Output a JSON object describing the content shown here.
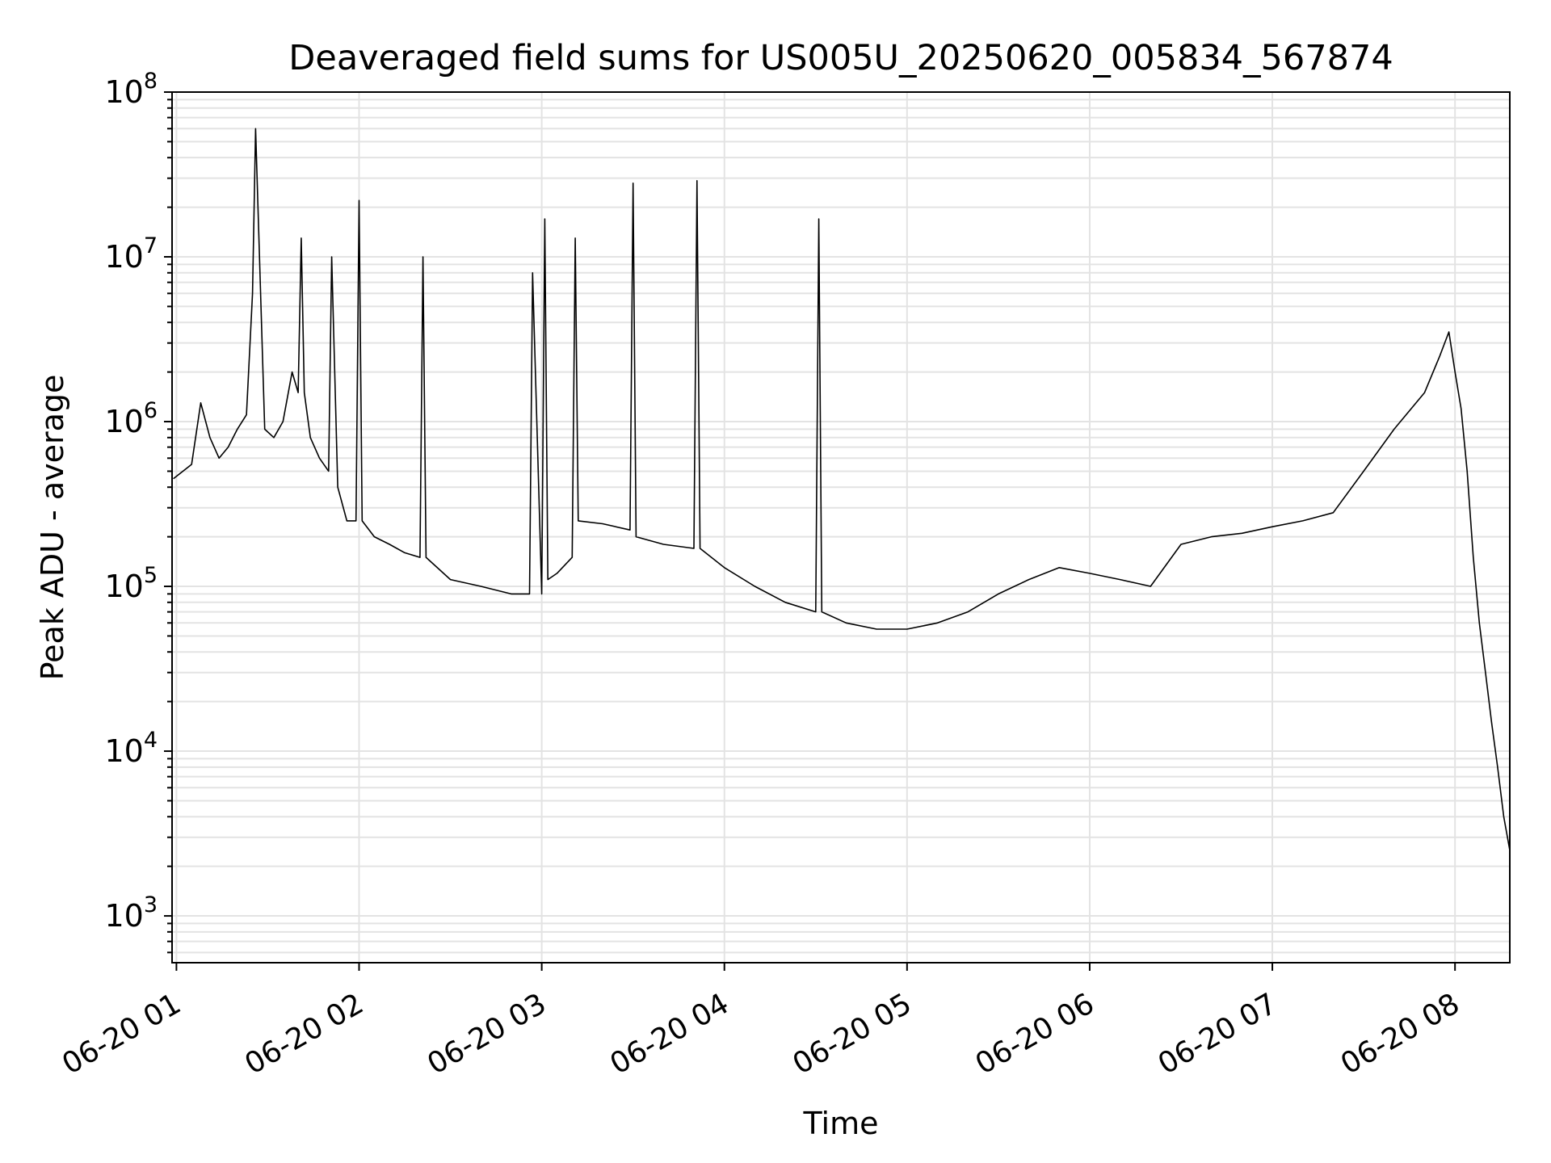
{
  "chart_data": {
    "type": "line",
    "title": "Deaveraged field sums for US005U_20250620_005834_567874",
    "xlabel": "Time",
    "ylabel": "Peak ADU - average",
    "yscale": "log",
    "grid": true,
    "ylim": [
      520,
      100000000
    ],
    "xlim": [
      "06-20 00:58:34",
      "06-20 08:18:00"
    ],
    "x_ticks": [
      "06-20 01",
      "06-20 02",
      "06-20 03",
      "06-20 04",
      "06-20 05",
      "06-20 06",
      "06-20 07",
      "06-20 08"
    ],
    "line_color": "#000000",
    "series": [
      {
        "x": [
          "06-20 00:59",
          "06-20 01:05",
          "06-20 01:08",
          "06-20 01:11",
          "06-20 01:14",
          "06-20 01:17",
          "06-20 01:20",
          "06-20 01:23",
          "06-20 01:25",
          "06-20 01:26",
          "06-20 01:29",
          "06-20 01:32",
          "06-20 01:35",
          "06-20 01:38",
          "06-20 01:40",
          "06-20 01:41",
          "06-20 01:42",
          "06-20 01:44",
          "06-20 01:47",
          "06-20 01:50",
          "06-20 01:51",
          "06-20 01:53",
          "06-20 01:56",
          "06-20 01:59",
          "06-20 02:00",
          "06-20 02:01",
          "06-20 02:05",
          "06-20 02:10",
          "06-20 02:15",
          "06-20 02:20",
          "06-20 02:21",
          "06-20 02:22",
          "06-20 02:30",
          "06-20 02:40",
          "06-20 02:50",
          "06-20 02:56",
          "06-20 02:57",
          "06-20 03:00",
          "06-20 03:01",
          "06-20 03:02",
          "06-20 03:05",
          "06-20 03:10",
          "06-20 03:11",
          "06-20 03:12",
          "06-20 03:20",
          "06-20 03:29",
          "06-20 03:30",
          "06-20 03:31",
          "06-20 03:40",
          "06-20 03:50",
          "06-20 03:51",
          "06-20 03:52",
          "06-20 04:00",
          "06-20 04:10",
          "06-20 04:20",
          "06-20 04:30",
          "06-20 04:31",
          "06-20 04:32",
          "06-20 04:40",
          "06-20 04:50",
          "06-20 05:00",
          "06-20 05:10",
          "06-20 05:20",
          "06-20 05:30",
          "06-20 05:40",
          "06-20 05:50",
          "06-20 06:00",
          "06-20 06:10",
          "06-20 06:20",
          "06-20 06:30",
          "06-20 06:40",
          "06-20 06:50",
          "06-20 07:00",
          "06-20 07:10",
          "06-20 07:20",
          "06-20 07:30",
          "06-20 07:40",
          "06-20 07:50",
          "06-20 07:55",
          "06-20 07:58",
          "06-20 08:00",
          "06-20 08:02",
          "06-20 08:04",
          "06-20 08:06",
          "06-20 08:08",
          "06-20 08:10",
          "06-20 08:12",
          "06-20 08:14",
          "06-20 08:16",
          "06-20 08:18"
        ],
        "values": [
          450000,
          550000,
          1300000,
          800000,
          600000,
          700000,
          900000,
          1100000,
          6000000,
          60000000,
          900000,
          800000,
          1000000,
          2000000,
          1500000,
          13000000,
          1500000,
          800000,
          600000,
          500000,
          10000000,
          400000,
          250000,
          250000,
          22000000,
          250000,
          200000,
          180000,
          160000,
          150000,
          10000000,
          150000,
          110000,
          100000,
          90000,
          90000,
          8000000,
          90000,
          17000000,
          110000,
          120000,
          150000,
          13000000,
          250000,
          240000,
          220000,
          28000000,
          200000,
          180000,
          170000,
          29000000,
          170000,
          130000,
          100000,
          80000,
          70000,
          17000000,
          70000,
          60000,
          55000,
          55000,
          60000,
          70000,
          90000,
          110000,
          130000,
          120000,
          110000,
          100000,
          180000,
          200000,
          210000,
          230000,
          250000,
          280000,
          500000,
          900000,
          1500000,
          2500000,
          3500000,
          2000000,
          1200000,
          500000,
          150000,
          60000,
          30000,
          15000,
          8000,
          4000,
          2500
        ]
      }
    ]
  }
}
